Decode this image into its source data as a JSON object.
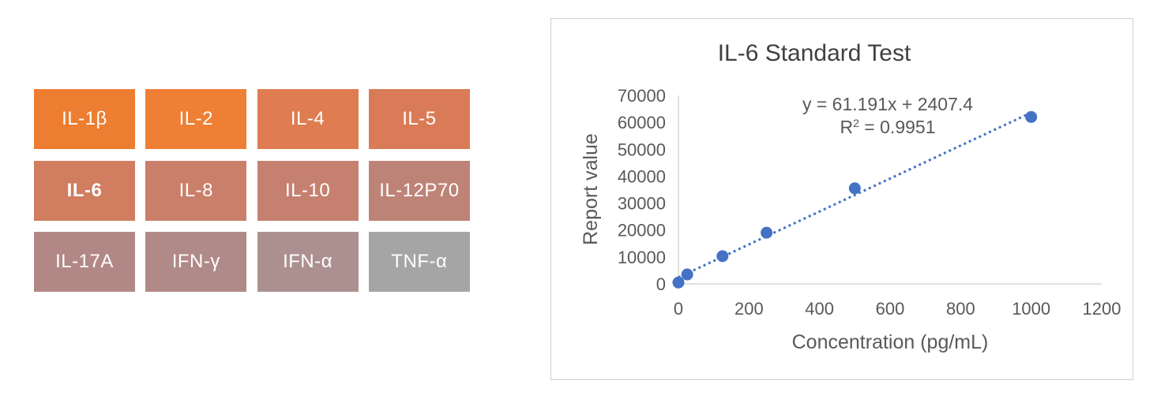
{
  "tiles": [
    {
      "label": "IL-1β",
      "color": "#ED7D31",
      "bold": false
    },
    {
      "label": "IL-2",
      "color": "#EE7F35",
      "bold": false
    },
    {
      "label": "IL-4",
      "color": "#DF7C51",
      "bold": false
    },
    {
      "label": "IL-5",
      "color": "#D97B57",
      "bold": false
    },
    {
      "label": "IL-6",
      "color": "#D07D60",
      "bold": true
    },
    {
      "label": "IL-8",
      "color": "#CA7F6A",
      "bold": false
    },
    {
      "label": "IL-10",
      "color": "#C58070",
      "bold": false
    },
    {
      "label": "IL-12P70",
      "color": "#BE8377",
      "bold": false
    },
    {
      "label": "IL-17A",
      "color": "#B18886",
      "bold": false
    },
    {
      "label": "IFN-γ",
      "color": "#AF8A88",
      "bold": false
    },
    {
      "label": "IFN-α",
      "color": "#AC9090",
      "bold": false
    },
    {
      "label": "TNF-α",
      "color": "#A5A5A5",
      "bold": false
    }
  ],
  "chart_data": {
    "type": "scatter",
    "title": "IL-6 Standard Test",
    "xlabel": "Concentration (pg/mL)",
    "ylabel": "Report value",
    "xlim": [
      0,
      1200
    ],
    "ylim": [
      0,
      70000
    ],
    "x_ticks": [
      "0",
      "200",
      "400",
      "600",
      "800",
      "1000",
      "1200"
    ],
    "y_ticks": [
      "0",
      "10000",
      "20000",
      "30000",
      "40000",
      "50000",
      "60000",
      "70000"
    ],
    "grid": false,
    "points": [
      {
        "x": 0,
        "y": 500
      },
      {
        "x": 25,
        "y": 3500
      },
      {
        "x": 125,
        "y": 10300
      },
      {
        "x": 250,
        "y": 19000
      },
      {
        "x": 500,
        "y": 35500
      },
      {
        "x": 1000,
        "y": 62000
      }
    ],
    "trendline": {
      "type": "linear",
      "slope": 61.191,
      "intercept": 2407.4,
      "x_range": [
        0,
        1000
      ],
      "equation": "y = 61.191x + 2407.4",
      "r2_prefix": "R",
      "r2_exp": "2",
      "r2_suffix": " = 0.9951"
    },
    "point_color": "#4472C4"
  }
}
